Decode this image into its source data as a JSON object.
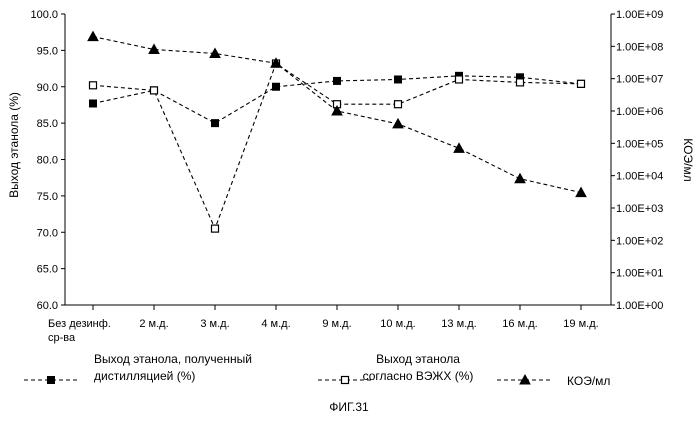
{
  "chart_data": {
    "type": "line",
    "categories": [
      [
        "Без дезинф.",
        "ср-ва"
      ],
      [
        "2 м.д."
      ],
      [
        "3 м.д."
      ],
      [
        "4 м.д."
      ],
      [
        "9 м.д."
      ],
      [
        "10 м.д."
      ],
      [
        "13 м.д."
      ],
      [
        "16 м.д."
      ],
      [
        "19 м.д."
      ]
    ],
    "ylabel_left": "Выход этанола (%)",
    "ylabel_right": "КОЭ/мл",
    "ylim_left": [
      60,
      100
    ],
    "yticks_left": [
      "60.0",
      "65.0",
      "70.0",
      "75.0",
      "80.0",
      "85.0",
      "90.0",
      "95.0",
      "100.0"
    ],
    "ylim_right_log10": [
      0,
      9
    ],
    "yticks_right": [
      "1.00E+00",
      "1.00E+01",
      "1.00E+02",
      "1.00E+03",
      "1.00E+04",
      "1.00E+05",
      "1.00E+06",
      "1.00E+07",
      "1.00E+08",
      "1.00E+09"
    ],
    "series": [
      {
        "name": [
          "Выход этанола, полученный",
          "дистилляцией (%)"
        ],
        "axis": "left",
        "marker": "filled-square",
        "values": [
          87.7,
          89.5,
          85.0,
          90.0,
          90.8,
          91.0,
          91.5,
          91.3,
          90.4
        ]
      },
      {
        "name": [
          "Выход этанола",
          "согласно ВЭЖХ (%)"
        ],
        "axis": "left",
        "marker": "open-square",
        "values": [
          90.2,
          89.5,
          70.5,
          93.2,
          87.6,
          87.6,
          91.0,
          90.6,
          90.4
        ]
      },
      {
        "name": [
          "КОЭ/мл"
        ],
        "axis": "right",
        "marker": "filled-triangle",
        "values": [
          200000000,
          80000000,
          60000000,
          30000000,
          1000000,
          400000,
          70000,
          8000,
          3000
        ]
      }
    ],
    "caption": "ФИГ.31",
    "grid": false,
    "legend_position": "bottom"
  }
}
